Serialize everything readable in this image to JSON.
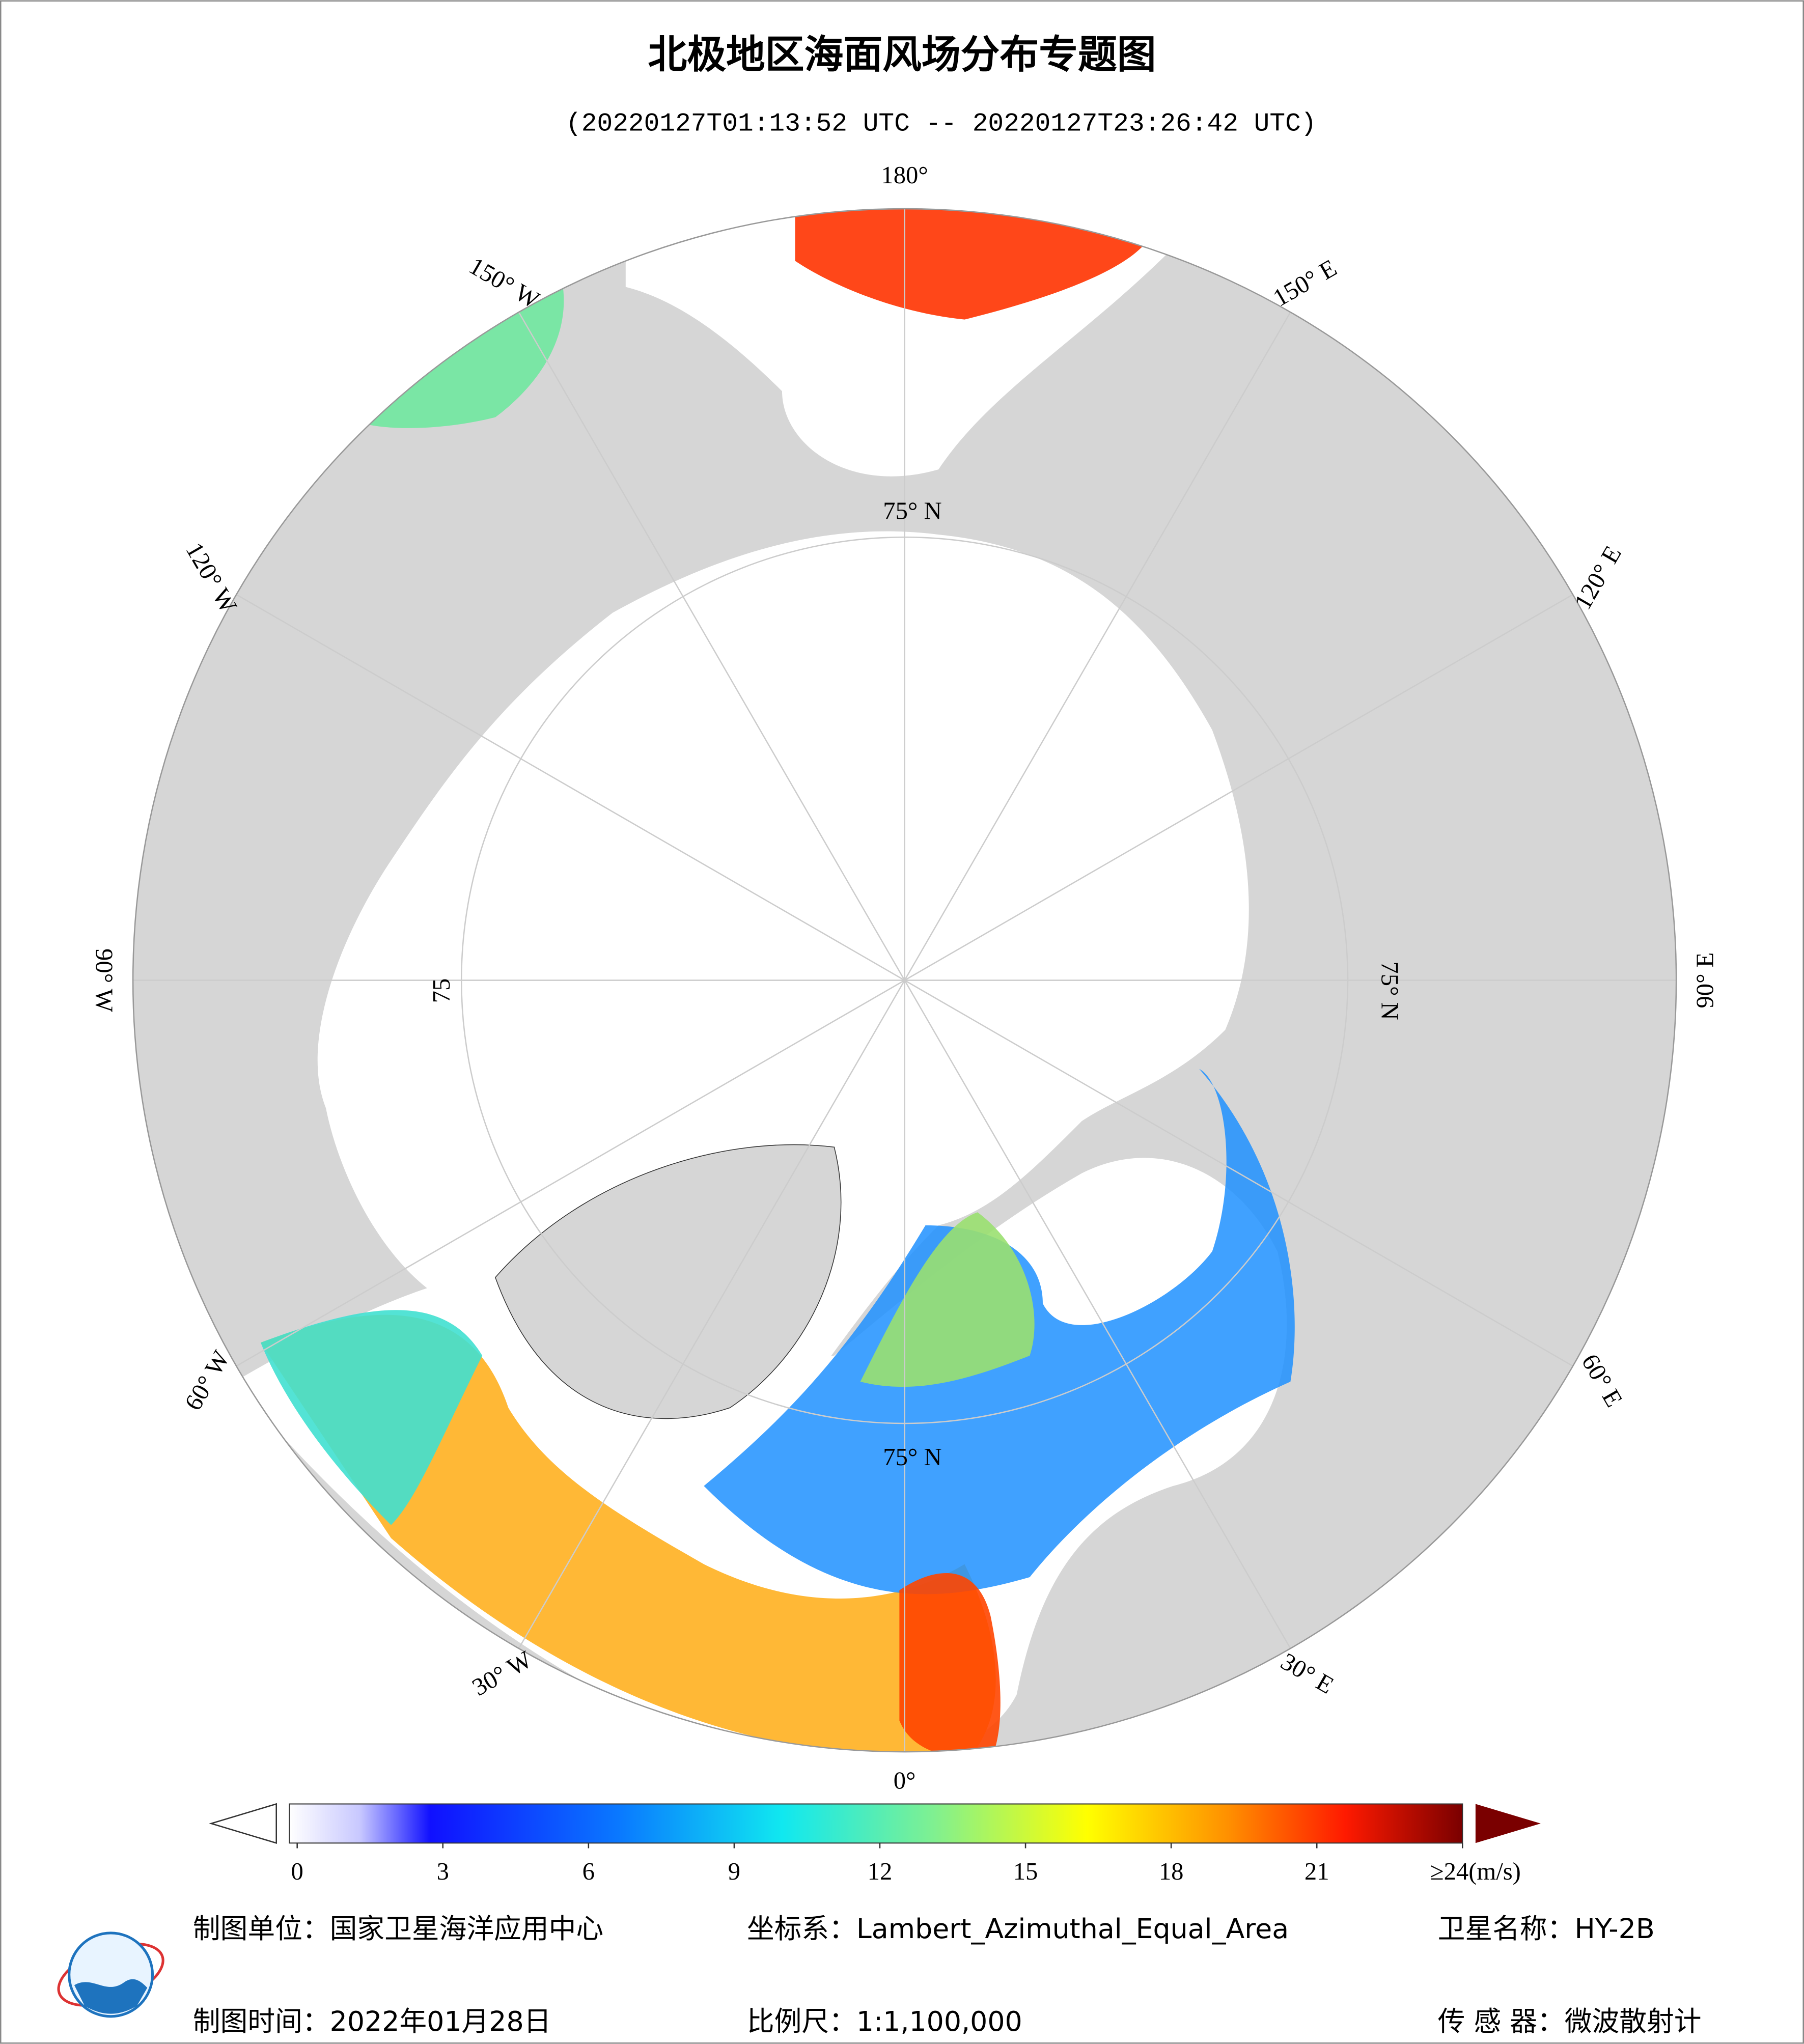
{
  "header": {
    "title": "北极地区海面风场分布专题图",
    "subtitle": "(20220127T01:13:52 UTC -- 20220127T23:26:42 UTC)"
  },
  "map": {
    "longitudes": [
      180,
      150,
      120,
      90,
      60,
      30,
      0,
      -30,
      -60,
      -90,
      -120,
      -150
    ],
    "longitude_labels": [
      "180°",
      "150° E",
      "120° E",
      "90° E",
      "60° E",
      "30° E",
      "0°",
      "30° W",
      "60° W",
      "90° W",
      "120° W",
      "150° W"
    ],
    "latitude_labels": [
      "75° N",
      "75° N",
      "75",
      "75° N"
    ]
  },
  "colorbar": {
    "ticks": [
      0,
      3,
      6,
      9,
      12,
      15,
      18,
      21,
      {
        "value": 24,
        "label": "≥24(m/s)"
      }
    ]
  },
  "footer": {
    "producer": "制图单位：国家卫星海洋应用中心",
    "crs": "坐标系：Lambert_Azimuthal_Equal_Area",
    "satellite": "卫星名称：HY-2B",
    "date": "制图时间：2022年01月28日",
    "scale": "比例尺：1:1,100,000",
    "sensor": "传 感 器：微波散射计"
  }
}
